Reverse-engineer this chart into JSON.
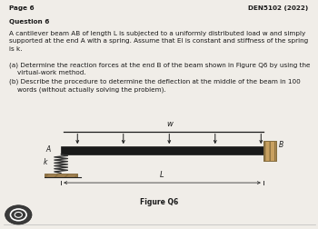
{
  "bg_color": "#f0ede8",
  "page_label": "Page 6",
  "course_label": "DEN5102 (2022)",
  "question_title": "Question 6",
  "paragraph1": "A cantilever beam AB of length L is subjected to a uniformly distributed load w and simply\nsupported at the end A with a spring. Assume that EI is constant and stiffness of the spring\nis k.",
  "part_a": "(a) Determine the reaction forces at the end B of the beam shown in Figure Q6 by using the\n    virtual-work method.",
  "part_b": "(b) Describe the procedure to determine the deflection at the middle of the beam in 100\n    words (without actually solving the problem).",
  "figure_label": "Figure Q6",
  "beam_color": "#1a1a1a",
  "udl_color": "#1a1a1a",
  "wall_color": "#c8a060",
  "spring_color": "#333333",
  "ground_color": "#a08050",
  "text_color": "#1a1a1a",
  "dim_color": "#333333"
}
